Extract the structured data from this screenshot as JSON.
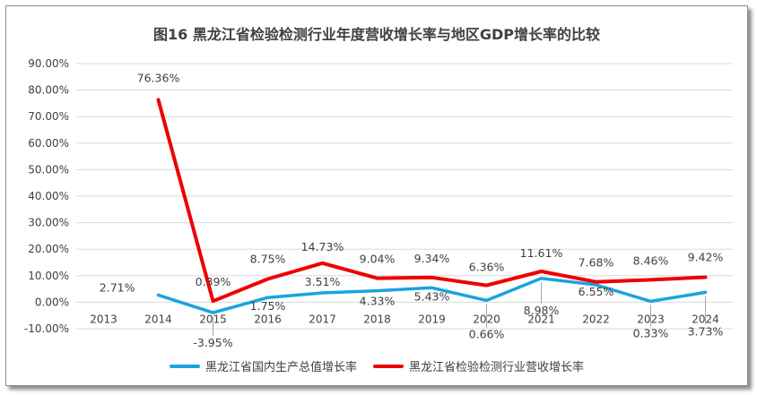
{
  "chart_data": {
    "type": "line",
    "title": "图16  黑龙江省检验检测行业年度营收增长率与地区GDP增长率的比较",
    "xlabel": "",
    "ylabel": "",
    "categories": [
      "2013",
      "2014",
      "2015",
      "2016",
      "2017",
      "2018",
      "2019",
      "2020",
      "2021",
      "2022",
      "2023",
      "2024"
    ],
    "ylim": [
      -10,
      90
    ],
    "yticks": [
      -10,
      0,
      10,
      20,
      30,
      40,
      50,
      60,
      70,
      80,
      90
    ],
    "ytick_labels": [
      "-10.00%",
      "0.00%",
      "10.00%",
      "20.00%",
      "30.00%",
      "40.00%",
      "50.00%",
      "60.00%",
      "70.00%",
      "80.00%",
      "90.00%"
    ],
    "grid": true,
    "legend_position": "bottom",
    "series": [
      {
        "name": "黑龙江省国内生产总值增长率",
        "color": "#1aa3e0",
        "values": [
          null,
          2.71,
          -3.95,
          1.75,
          3.51,
          4.33,
          5.43,
          0.66,
          8.98,
          6.55,
          0.33,
          3.73
        ],
        "labels": [
          null,
          "2.71%",
          "-3.95%",
          "1.75%",
          "3.51%",
          "4.33%",
          "5.43%",
          "0.66%",
          "8.98%",
          "6.55%",
          "0.33%",
          "3.73%"
        ]
      },
      {
        "name": "黑龙江省检验检测行业营收增长率",
        "color": "#ee0000",
        "values": [
          null,
          76.36,
          0.39,
          8.75,
          14.73,
          9.04,
          9.34,
          6.36,
          11.61,
          7.68,
          8.46,
          9.42
        ],
        "labels": [
          null,
          "76.36%",
          "0.39%",
          "8.75%",
          "14.73%",
          "9.04%",
          "9.34%",
          "6.36%",
          "11.61%",
          "7.68%",
          "8.46%",
          "9.42%"
        ]
      }
    ]
  }
}
